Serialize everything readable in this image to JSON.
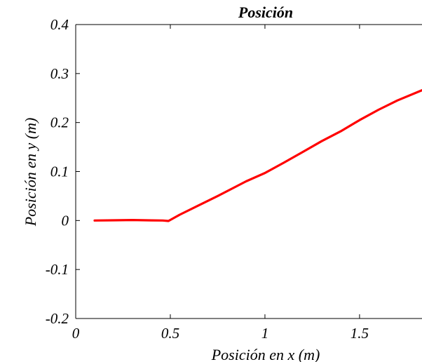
{
  "chart_data": {
    "type": "line",
    "title": "Posición",
    "xlabel": "Posición en x (m)",
    "ylabel": "Posición en y (m)",
    "xlim": [
      0,
      1.83
    ],
    "ylim": [
      -0.2,
      0.4
    ],
    "xticks": [
      0,
      0.5,
      1,
      1.5
    ],
    "xtick_labels": [
      "0",
      "0.5",
      "1",
      "1.5"
    ],
    "yticks": [
      -0.2,
      -0.1,
      0,
      0.1,
      0.2,
      0.3,
      0.4
    ],
    "ytick_labels": [
      "-0.2",
      "-0.1",
      "0",
      "0.1",
      "0.2",
      "0.3",
      "0.4"
    ],
    "grid": false,
    "series": [
      {
        "color": "#ff0000",
        "x": [
          0.1,
          0.2,
          0.3,
          0.4,
          0.46,
          0.49,
          0.55,
          0.65,
          0.75,
          0.85,
          0.9,
          1.0,
          1.1,
          1.2,
          1.3,
          1.4,
          1.5,
          1.6,
          1.7,
          1.83
        ],
        "y": [
          0.0,
          0.0005,
          0.001,
          0.0003,
          0.0,
          -0.001,
          0.012,
          0.031,
          0.05,
          0.07,
          0.08,
          0.097,
          0.118,
          0.14,
          0.162,
          0.182,
          0.205,
          0.226,
          0.245,
          0.266
        ]
      }
    ]
  }
}
